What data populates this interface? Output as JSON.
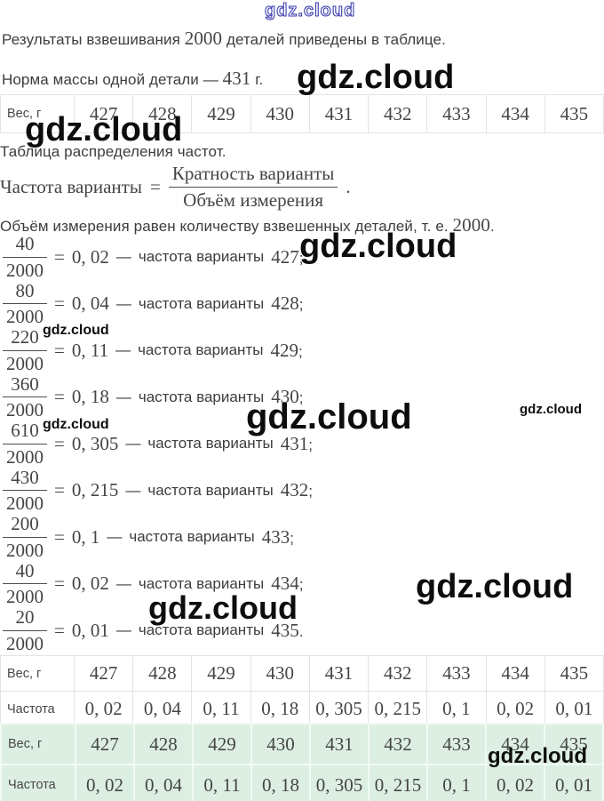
{
  "watermark": {
    "brand": "gdz.cloud"
  },
  "symbols": {
    "eq": "=",
    "dash": "—"
  },
  "intro": {
    "line1_pre": "Результаты взвешивания",
    "line1_num": "2000",
    "line1_post": "деталей приведены в таблице.",
    "line2_pre": "Норма массы одной детали —",
    "line2_num": "431",
    "line2_post": "г."
  },
  "weights_table": {
    "label": "Вес, г",
    "values": [
      "427",
      "428",
      "429",
      "430",
      "431",
      "432",
      "433",
      "434",
      "435"
    ]
  },
  "freq_section": {
    "title": "Таблица распределения частот.",
    "formula_lhs": "Частота варианты",
    "formula_numerator": "Кратность варианты",
    "formula_denominator": "Объём измерения",
    "formula_period": ".",
    "volume_pre": "Объём измерения равен количеству взвешенных деталей, т. е.",
    "volume_num": "2000",
    "volume_post": "."
  },
  "frequencies": [
    {
      "numerator": "40",
      "denominator": "2000",
      "value": "0, 02",
      "label": "частота варианты",
      "weight": "427",
      "punct": ";"
    },
    {
      "numerator": "80",
      "denominator": "2000",
      "value": "0, 04",
      "label": "частота варианты",
      "weight": "428",
      "punct": ";"
    },
    {
      "numerator": "220",
      "denominator": "2000",
      "value": "0, 11",
      "label": "частота варианты",
      "weight": "429",
      "punct": ";"
    },
    {
      "numerator": "360",
      "denominator": "2000",
      "value": "0, 18",
      "label": "частота варианты",
      "weight": "430",
      "punct": ";"
    },
    {
      "numerator": "610",
      "denominator": "2000",
      "value": "0, 305",
      "label": "частота варианты",
      "weight": "431",
      "punct": ";"
    },
    {
      "numerator": "430",
      "denominator": "2000",
      "value": "0, 215",
      "label": "частота варианты",
      "weight": "432",
      "punct": ";"
    },
    {
      "numerator": "200",
      "denominator": "2000",
      "value": "0, 1",
      "label": "частота варианты",
      "weight": "433",
      "punct": ";"
    },
    {
      "numerator": "40",
      "denominator": "2000",
      "value": "0, 02",
      "label": "частота варианты",
      "weight": "434",
      "punct": ";"
    },
    {
      "numerator": "20",
      "denominator": "2000",
      "value": "0, 01",
      "label": "частота варианты",
      "weight": "435",
      "punct": "."
    }
  ],
  "frequency_table_white": {
    "row1_label": "Вес, г",
    "row2_label": "Частота",
    "weights": [
      "427",
      "428",
      "429",
      "430",
      "431",
      "432",
      "433",
      "434",
      "435"
    ],
    "values": [
      "0, 02",
      "0, 04",
      "0, 11",
      "0, 18",
      "0, 305",
      "0, 215",
      "0, 1",
      "0, 02",
      "0, 01"
    ]
  },
  "frequency_table_green": {
    "row1_label": "Вес, г",
    "row2_label": "Частота",
    "weights": [
      "427",
      "428",
      "429",
      "430",
      "431",
      "432",
      "433",
      "434",
      "435"
    ],
    "values": [
      "0, 02",
      "0, 04",
      "0, 11",
      "0, 18",
      "0, 305",
      "0, 215",
      "0, 1",
      "0, 02",
      "0, 01"
    ]
  }
}
